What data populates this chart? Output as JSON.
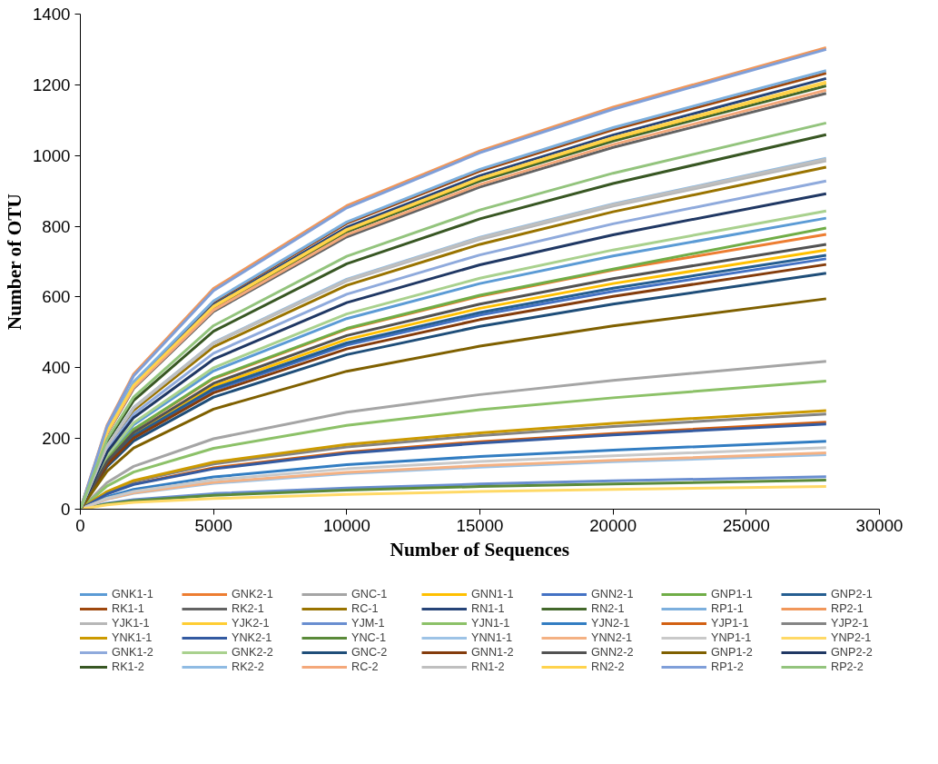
{
  "chart_data": {
    "type": "line",
    "xlabel": "Number of Sequences",
    "ylabel": "Number of OTU",
    "x": [
      0,
      1000,
      2000,
      5000,
      10000,
      15000,
      20000,
      28000
    ],
    "xlim": [
      0,
      30000
    ],
    "xticks": [
      0,
      5000,
      10000,
      15000,
      20000,
      25000,
      30000
    ],
    "ylim": [
      0,
      1400
    ],
    "yticks": [
      0,
      200,
      400,
      600,
      800,
      1000,
      1200,
      1400
    ],
    "grid": false,
    "legend": "bottom",
    "marker": "none",
    "line_style": "solid",
    "series": [
      {
        "name": "GNK1-1",
        "color": "#5b9bd5",
        "values": [
          0,
          148,
          239,
          391,
          539,
          638,
          716,
          823
        ]
      },
      {
        "name": "GNK2-1",
        "color": "#ed7d31",
        "values": [
          0,
          140,
          225,
          369,
          509,
          602,
          676,
          777
        ]
      },
      {
        "name": "GNC-1",
        "color": "#a5a5a5",
        "values": [
          0,
          75,
          121,
          199,
          274,
          324,
          364,
          418
        ]
      },
      {
        "name": "GNN1-1",
        "color": "#ffc000",
        "values": [
          0,
          132,
          213,
          348,
          480,
          568,
          638,
          733
        ]
      },
      {
        "name": "GNN2-1",
        "color": "#4472c4",
        "values": [
          0,
          127,
          205,
          336,
          464,
          549,
          616,
          708
        ]
      },
      {
        "name": "GNP1-1",
        "color": "#70ad47",
        "values": [
          0,
          140,
          226,
          371,
          511,
          605,
          679,
          795
        ]
      },
      {
        "name": "GNP2-1",
        "color": "#255e91",
        "values": [
          0,
          129,
          208,
          341,
          470,
          556,
          625,
          718
        ]
      },
      {
        "name": "RK1-1",
        "color": "#9e480e",
        "values": [
          0,
          222,
          358,
          586,
          808,
          956,
          1073,
          1233
        ]
      },
      {
        "name": "RK2-1",
        "color": "#636363",
        "values": [
          0,
          212,
          341,
          559,
          770,
          911,
          1023,
          1176
        ]
      },
      {
        "name": "RC-1",
        "color": "#997300",
        "values": [
          0,
          174,
          280,
          459,
          633,
          749,
          841,
          967
        ]
      },
      {
        "name": "RN1-1",
        "color": "#264478",
        "values": [
          0,
          219,
          353,
          578,
          797,
          943,
          1058,
          1218
        ]
      },
      {
        "name": "RN2-1",
        "color": "#43682b",
        "values": [
          0,
          215,
          347,
          569,
          784,
          928,
          1041,
          1197
        ]
      },
      {
        "name": "RP1-1",
        "color": "#7cafdd",
        "values": [
          0,
          223,
          360,
          589,
          812,
          961,
          1079,
          1240
        ]
      },
      {
        "name": "RP2-1",
        "color": "#f1975a",
        "values": [
          0,
          237,
          382,
          624,
          858,
          1013,
          1137,
          1305
        ]
      },
      {
        "name": "YJK1-1",
        "color": "#b7b7b7",
        "values": [
          0,
          177,
          286,
          468,
          645,
          763,
          857,
          985
        ]
      },
      {
        "name": "YJK2-1",
        "color": "#ffcd33",
        "values": [
          0,
          217,
          349,
          572,
          789,
          934,
          1048,
          1205
        ]
      },
      {
        "name": "YJM-1",
        "color": "#698ed0",
        "values": [
          0,
          17,
          27,
          44,
          60,
          71,
          80,
          92
        ]
      },
      {
        "name": "YJN1-1",
        "color": "#8cc168",
        "values": [
          0,
          65,
          105,
          172,
          237,
          281,
          315,
          362
        ]
      },
      {
        "name": "YJN2-1",
        "color": "#327dc2",
        "values": [
          0,
          35,
          56,
          91,
          126,
          149,
          167,
          192
        ]
      },
      {
        "name": "YJP1-1",
        "color": "#d26012",
        "values": [
          0,
          44,
          71,
          117,
          161,
          191,
          214,
          246
        ]
      },
      {
        "name": "YJP2-1",
        "color": "#848484",
        "values": [
          0,
          48,
          78,
          128,
          176,
          208,
          234,
          269
        ]
      },
      {
        "name": "YNK1-1",
        "color": "#cc9a00",
        "values": [
          0,
          50,
          81,
          133,
          183,
          216,
          243,
          279
        ]
      },
      {
        "name": "YNK2-1",
        "color": "#335aa1",
        "values": [
          0,
          43,
          70,
          114,
          158,
          187,
          210,
          241
        ]
      },
      {
        "name": "YNC-1",
        "color": "#5a8a39",
        "values": [
          0,
          15,
          24,
          39,
          54,
          64,
          71,
          82
        ]
      },
      {
        "name": "YNN1-1",
        "color": "#9dc3e6",
        "values": [
          0,
          28,
          45,
          73,
          101,
          119,
          134,
          154
        ]
      },
      {
        "name": "YNN2-1",
        "color": "#f4b183",
        "values": [
          0,
          29,
          46,
          76,
          104,
          123,
          138,
          159
        ]
      },
      {
        "name": "YNP1-1",
        "color": "#c9c9c9",
        "values": [
          0,
          31,
          50,
          83,
          114,
          135,
          151,
          174
        ]
      },
      {
        "name": "YNP2-1",
        "color": "#ffd966",
        "values": [
          0,
          12,
          19,
          30,
          42,
          50,
          56,
          64
        ]
      },
      {
        "name": "GNK1-2",
        "color": "#8faadc",
        "values": [
          0,
          167,
          269,
          441,
          608,
          719,
          807,
          928
        ]
      },
      {
        "name": "GNK2-2",
        "color": "#a9d18e",
        "values": [
          0,
          152,
          244,
          400,
          552,
          653,
          733,
          843
        ]
      },
      {
        "name": "GNC-2",
        "color": "#1f4e79",
        "values": [
          0,
          120,
          193,
          317,
          437,
          517,
          580,
          667
        ]
      },
      {
        "name": "GNN1-2",
        "color": "#843c0c",
        "values": [
          0,
          125,
          201,
          329,
          453,
          536,
          602,
          692
        ]
      },
      {
        "name": "GNN2-2",
        "color": "#525252",
        "values": [
          0,
          135,
          217,
          356,
          491,
          580,
          652,
          749
        ]
      },
      {
        "name": "GNP1-2",
        "color": "#7f6000",
        "values": [
          0,
          107,
          173,
          283,
          390,
          461,
          518,
          595
        ]
      },
      {
        "name": "GNP2-2",
        "color": "#203864",
        "values": [
          0,
          161,
          259,
          424,
          584,
          691,
          776,
          892
        ]
      },
      {
        "name": "RK1-2",
        "color": "#385723",
        "values": [
          0,
          191,
          307,
          503,
          694,
          821,
          921,
          1059
        ]
      },
      {
        "name": "RK2-2",
        "color": "#8fbbe3",
        "values": [
          0,
          179,
          288,
          471,
          650,
          769,
          863,
          992
        ]
      },
      {
        "name": "RC-2",
        "color": "#f4a87a",
        "values": [
          0,
          213,
          344,
          563,
          776,
          918,
          1031,
          1185
        ]
      },
      {
        "name": "RN1-2",
        "color": "#bfbfbf",
        "values": [
          0,
          178,
          287,
          470,
          648,
          767,
          861,
          990
        ]
      },
      {
        "name": "RN2-2",
        "color": "#ffd34d",
        "values": [
          0,
          217,
          350,
          574,
          791,
          936,
          1051,
          1208
        ]
      },
      {
        "name": "RP1-2",
        "color": "#7f9fd9",
        "values": [
          0,
          234,
          377,
          618,
          852,
          1008,
          1131,
          1300
        ]
      },
      {
        "name": "RP2-2",
        "color": "#93c47d",
        "values": [
          0,
          197,
          317,
          519,
          715,
          846,
          950,
          1092
        ]
      }
    ]
  }
}
